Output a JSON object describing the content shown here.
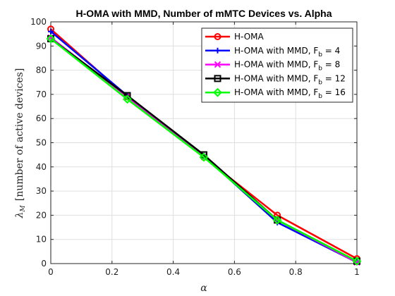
{
  "chart_data": {
    "type": "line",
    "title": "H-OMA with MMD, Number of mMTC Devices vs. Alpha",
    "xlabel": "α",
    "ylabel_main": "λ",
    "ylabel_sub": "M",
    "ylabel_rest": "[number of active devices]",
    "xlim": [
      0,
      1
    ],
    "ylim": [
      0,
      100
    ],
    "xticks": [
      "0",
      "0.2",
      "0.4",
      "0.6",
      "0.8",
      "1"
    ],
    "yticks": [
      "0",
      "10",
      "20",
      "30",
      "40",
      "50",
      "60",
      "70",
      "80",
      "90",
      "100"
    ],
    "grid": true,
    "legend_position": "top-right",
    "x": [
      0,
      0.25,
      0.5,
      0.74,
      1
    ],
    "series": [
      {
        "name": "H-OMA",
        "name_main": "H-OMA",
        "name_sub": "",
        "name_tail": "",
        "color": "#ff0000",
        "marker": "circle",
        "values": [
          97,
          69,
          44,
          20,
          2
        ]
      },
      {
        "name": "H-OMA with MMD, F_b = 4",
        "name_main": "H-OMA with MMD, F",
        "name_sub": "b",
        "name_tail": " = 4",
        "color": "#0000ff",
        "marker": "plus",
        "values": [
          96,
          69.5,
          44.5,
          17,
          0.5
        ]
      },
      {
        "name": "H-OMA with MMD, F_b = 8",
        "name_main": "H-OMA with MMD, F",
        "name_sub": "b",
        "name_tail": " = 8",
        "color": "#ff00ff",
        "marker": "x",
        "values": [
          93.5,
          69,
          44.5,
          18,
          0.5
        ]
      },
      {
        "name": "H-OMA with MMD, F_b = 12",
        "name_main": "H-OMA with MMD, F",
        "name_sub": "b",
        "name_tail": " = 12",
        "color": "#000000",
        "marker": "square",
        "values": [
          93,
          69.5,
          45,
          18,
          1
        ]
      },
      {
        "name": "H-OMA with MMD, F_b = 16",
        "name_main": "H-OMA with MMD, F",
        "name_sub": "b",
        "name_tail": " = 16",
        "color": "#00ff00",
        "marker": "diamond",
        "values": [
          93,
          68,
          44,
          18,
          1
        ]
      }
    ]
  }
}
